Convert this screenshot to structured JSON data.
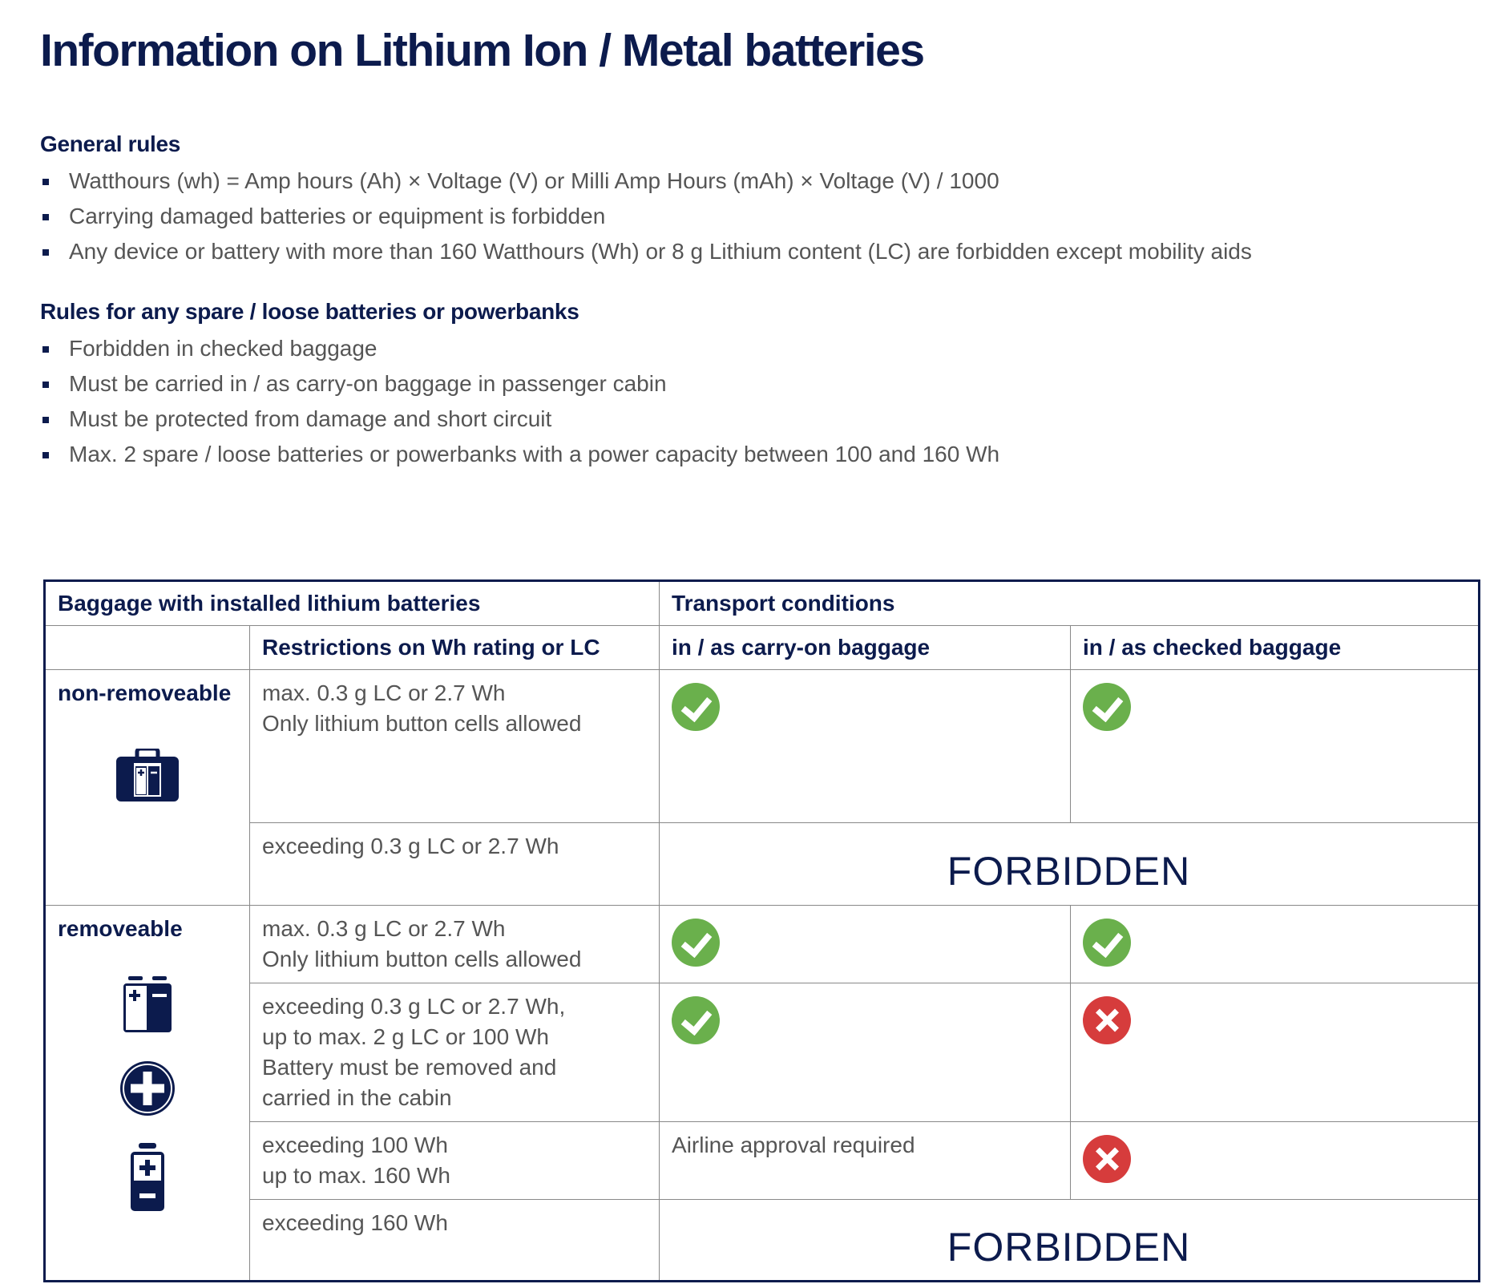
{
  "title": "Information on Lithium Ion / Metal batteries",
  "general": {
    "heading": "General rules",
    "items": [
      "Watthours (wh) = Amp hours (Ah) × Voltage (V) or Milli Amp Hours (mAh) × Voltage (V) / 1000",
      "Carrying damaged batteries or equipment is forbidden",
      "Any device or battery with more than 160 Watthours (Wh) or 8 g Lithium content (LC) are forbidden except mobility aids"
    ]
  },
  "spare": {
    "heading": "Rules for any spare / loose batteries or powerbanks",
    "items": [
      "Forbidden in checked baggage",
      "Must be carried in / as carry-on baggage in passenger cabin",
      "Must be protected from damage and short circuit",
      "Max. 2 spare / loose batteries or powerbanks with a power capacity between 100 and 160 Wh"
    ]
  },
  "table": {
    "h_baggage": "Baggage with installed lithium batteries",
    "h_transport": "Transport conditions",
    "h_restrictions": "Restrictions on Wh rating or LC",
    "h_carry": "in / as carry-on baggage",
    "h_checked": "in / as checked baggage",
    "nonremove": "non-removeable",
    "remove": "removeable",
    "forbidden": "FORBIDDEN",
    "r1": [
      "max. 0.3 g LC or 2.7 Wh",
      "Only lithium button cells allowed"
    ],
    "r2": "exceeding 0.3 g LC or 2.7 Wh",
    "r3": [
      "max. 0.3 g LC or 2.7 Wh",
      "Only lithium button cells allowed"
    ],
    "r4": [
      "exceeding 0.3 g LC or 2.7 Wh,",
      "up to max. 2 g LC or 100 Wh",
      "Battery must be removed and",
      "carried in the cabin"
    ],
    "r5": [
      "exceeding 100 Wh",
      "up to max. 160 Wh"
    ],
    "r5_carry": "Airline approval required",
    "r6": "exceeding 160 Wh"
  },
  "colors": {
    "navy": "#0c1b4d",
    "allowed": "#6ab04c",
    "forbidden": "#d63c3c"
  }
}
